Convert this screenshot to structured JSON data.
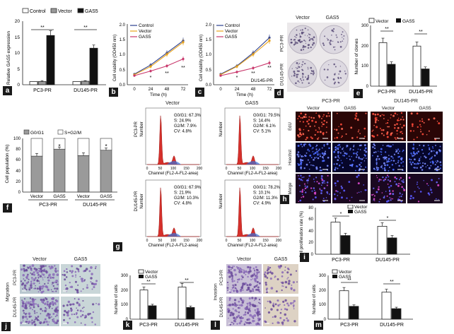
{
  "panel_a": {
    "letter": "a",
    "legend": [
      "Control",
      "Vector",
      "GAS5"
    ],
    "ylabel": "Relative GAS5 expression",
    "yticks": [
      "0",
      "5",
      "10",
      "15",
      "20"
    ],
    "groups": [
      "PC3-PR",
      "DU145-PR"
    ],
    "sig": [
      "**",
      "**"
    ]
  },
  "panel_b": {
    "letter": "b",
    "legend": [
      "Control",
      "Vector",
      "GAS5"
    ],
    "ylabel": "Cell viability (OD450 nm)",
    "xlabel": "Time (h)",
    "xticks": [
      "0",
      "24",
      "48",
      "72"
    ],
    "yticks": [
      "0.0",
      "0.5",
      "1.0",
      "1.5",
      "2.0"
    ],
    "cell": "",
    "stars": [
      "*",
      "**",
      "**"
    ]
  },
  "panel_c": {
    "letter": "c",
    "legend": [
      "Control",
      "Vector",
      "GAS5"
    ],
    "ylabel": "Cell viability (OD450 nm)",
    "xlabel": "Time (h)",
    "xticks": [
      "0",
      "24",
      "48",
      "72"
    ],
    "yticks": [
      "0.0",
      "0.5",
      "1.0",
      "1.5",
      "2.0"
    ],
    "cell": "DU145-PR",
    "stars": [
      "*",
      "**",
      "**"
    ]
  },
  "panel_d": {
    "letter": "d",
    "cols": [
      "Vector",
      "GAS5"
    ],
    "rows": [
      "PC3-PR",
      "DU145-PR"
    ]
  },
  "panel_e": {
    "letter": "e",
    "legend": [
      "Vector",
      "GAS5"
    ],
    "ylabel": "Number of clones",
    "yticks": [
      "0",
      "100",
      "200",
      "300"
    ],
    "groups": [
      "PC3-PR",
      "DU145-PR"
    ],
    "sig": [
      "**",
      "**"
    ]
  },
  "panel_f": {
    "letter": "f",
    "legend": [
      "G0/G1",
      "S+G2/M"
    ],
    "ylabel": "Cell population (%)",
    "yticks": [
      "0",
      "20",
      "40",
      "60",
      "80",
      "100"
    ],
    "bars": [
      "Vector",
      "GAS5",
      "Vector",
      "GAS5"
    ],
    "groups": [
      "PC3-PR",
      "DU145-PR"
    ],
    "sig": [
      "*",
      "*"
    ]
  },
  "panel_g": {
    "letter": "g",
    "cols": [
      "Vector",
      "GAS5"
    ],
    "rows": [
      "PC3-PR",
      "DU145-PR"
    ],
    "ylabel": "Number",
    "xlabel": "Channel (FL2-A-FL2-area)",
    "xticks": [
      "0",
      "50",
      "100",
      "150",
      "200"
    ],
    "stats": [
      [
        "G0/G1: 67.3%",
        "S: 24.9%",
        "G2/M: 7.9%",
        "CV: 4.8%"
      ],
      [
        "G0/G1: 79.5%",
        "S: 14.4%",
        "G2/M: 6.1%",
        "CV: 5.1%"
      ],
      [
        "G0/G1: 67.9%",
        "S: 21.9%",
        "G2/M: 10.3%",
        "CV: 4.8%"
      ],
      [
        "G0/G1: 78.2%",
        "S: 10.1%",
        "G2/M: 11.3%",
        "CV: 4.9%"
      ]
    ]
  },
  "panel_h": {
    "letter": "h",
    "cells": [
      "PC3-PR",
      "DU145-PR"
    ],
    "cols": [
      "Vector",
      "GAS5",
      "Vector",
      "GAS5"
    ],
    "rows": [
      "EdU",
      "Hoechst",
      "Merge"
    ]
  },
  "panel_i": {
    "letter": "i",
    "legend": [
      "Vector",
      "GAS5"
    ],
    "ylabel": "Cell proliferation rate (%)",
    "yticks": [
      "0",
      "20",
      "40",
      "60",
      "80"
    ],
    "groups": [
      "PC3-PR",
      "DU145-PR"
    ],
    "sig": [
      "*",
      "*"
    ]
  },
  "panel_j": {
    "letter": "j",
    "side": "Migration",
    "cols": [
      "Vector",
      "GAS5"
    ],
    "rows": [
      "PC3-PR",
      "DU145-PR"
    ]
  },
  "panel_k": {
    "letter": "k",
    "legend": [
      "Vector",
      "GAS5"
    ],
    "ylabel": "Number of cells",
    "yticks": [
      "0",
      "100",
      "200",
      "300"
    ],
    "groups": [
      "PC3-PR",
      "DU145-PR"
    ],
    "sig": [
      "**",
      "**"
    ]
  },
  "panel_l": {
    "letter": "l",
    "side": "Invasion",
    "cols": [
      "Vector",
      "GAS5"
    ],
    "rows": [
      "PC3-PR",
      "DU145-PR"
    ]
  },
  "panel_m": {
    "letter": "m",
    "legend": [
      "Vector",
      "GAS5"
    ],
    "ylabel": "Number of cells",
    "yticks": [
      "0",
      "100",
      "200",
      "300"
    ],
    "groups": [
      "PC3-PR",
      "DU145-PR"
    ],
    "sig": [
      "**",
      "**"
    ]
  },
  "chart_data": [
    {
      "panel": "a",
      "type": "bar",
      "categories": [
        "PC3-PR",
        "DU145-PR"
      ],
      "ylim": [
        0,
        20
      ],
      "series": [
        {
          "name": "Control",
          "values": [
            1.0,
            1.0
          ],
          "errors": [
            0.0,
            0.0
          ]
        },
        {
          "name": "Vector",
          "values": [
            1.0,
            1.1
          ],
          "errors": [
            0.3,
            0.2
          ]
        },
        {
          "name": "GAS5",
          "values": [
            15.5,
            11.5
          ],
          "errors": [
            1.5,
            1.0
          ]
        }
      ]
    },
    {
      "panel": "b",
      "type": "line",
      "x": [
        0,
        24,
        48,
        72
      ],
      "ylim": [
        0,
        2.0
      ],
      "series": [
        {
          "name": "Control",
          "values": [
            0.35,
            0.65,
            1.05,
            1.45
          ],
          "errors": [
            0.04,
            0.06,
            0.08,
            0.1
          ]
        },
        {
          "name": "Vector",
          "values": [
            0.33,
            0.6,
            1.0,
            1.4
          ],
          "errors": [
            0.04,
            0.06,
            0.08,
            0.1
          ]
        },
        {
          "name": "GAS5",
          "values": [
            0.3,
            0.45,
            0.62,
            0.85
          ],
          "errors": [
            0.03,
            0.05,
            0.06,
            0.08
          ]
        }
      ]
    },
    {
      "panel": "c",
      "type": "line",
      "x": [
        0,
        24,
        48,
        72
      ],
      "ylim": [
        0,
        2.0
      ],
      "series": [
        {
          "name": "Control",
          "values": [
            0.35,
            0.62,
            1.05,
            1.55
          ],
          "errors": [
            0.04,
            0.06,
            0.08,
            0.1
          ]
        },
        {
          "name": "Vector",
          "values": [
            0.33,
            0.6,
            1.0,
            1.45
          ],
          "errors": [
            0.04,
            0.06,
            0.08,
            0.1
          ]
        },
        {
          "name": "GAS5",
          "values": [
            0.3,
            0.42,
            0.55,
            0.72
          ],
          "errors": [
            0.03,
            0.05,
            0.06,
            0.08
          ]
        }
      ]
    },
    {
      "panel": "e",
      "type": "bar",
      "categories": [
        "PC3-PR",
        "DU145-PR"
      ],
      "ylim": [
        0,
        300
      ],
      "series": [
        {
          "name": "Vector",
          "values": [
            215,
            198
          ],
          "errors": [
            22,
            20
          ]
        },
        {
          "name": "GAS5",
          "values": [
            108,
            85
          ],
          "errors": [
            12,
            10
          ]
        }
      ]
    },
    {
      "panel": "f",
      "type": "bar",
      "categories": [
        "Vector",
        "GAS5",
        "Vector",
        "GAS5"
      ],
      "ylim": [
        0,
        100
      ],
      "series": [
        {
          "name": "G0/G1",
          "values": [
            67,
            80,
            68,
            78
          ],
          "errors": [
            5,
            4,
            5,
            4
          ]
        },
        {
          "name": "S+G2/M",
          "values": [
            33,
            20,
            32,
            22
          ]
        }
      ]
    },
    {
      "panel": "i",
      "type": "bar",
      "categories": [
        "PC3-PR",
        "DU145-PR"
      ],
      "ylim": [
        0,
        80
      ],
      "series": [
        {
          "name": "Vector",
          "values": [
            55,
            48
          ],
          "errors": [
            7,
            6
          ]
        },
        {
          "name": "GAS5",
          "values": [
            32,
            28
          ],
          "errors": [
            4,
            4
          ]
        }
      ]
    },
    {
      "panel": "k",
      "type": "bar",
      "categories": [
        "PC3-PR",
        "DU145-PR"
      ],
      "ylim": [
        0,
        300
      ],
      "series": [
        {
          "name": "Vector",
          "values": [
            200,
            220
          ],
          "errors": [
            20,
            25
          ]
        },
        {
          "name": "GAS5",
          "values": [
            92,
            80
          ],
          "errors": [
            10,
            10
          ]
        }
      ]
    },
    {
      "panel": "m",
      "type": "bar",
      "categories": [
        "PC3-PR",
        "DU145-PR"
      ],
      "ylim": [
        0,
        300
      ],
      "series": [
        {
          "name": "Vector",
          "values": [
            195,
            185
          ],
          "errors": [
            22,
            20
          ]
        },
        {
          "name": "GAS5",
          "values": [
            88,
            72
          ],
          "errors": [
            10,
            10
          ]
        }
      ]
    }
  ]
}
